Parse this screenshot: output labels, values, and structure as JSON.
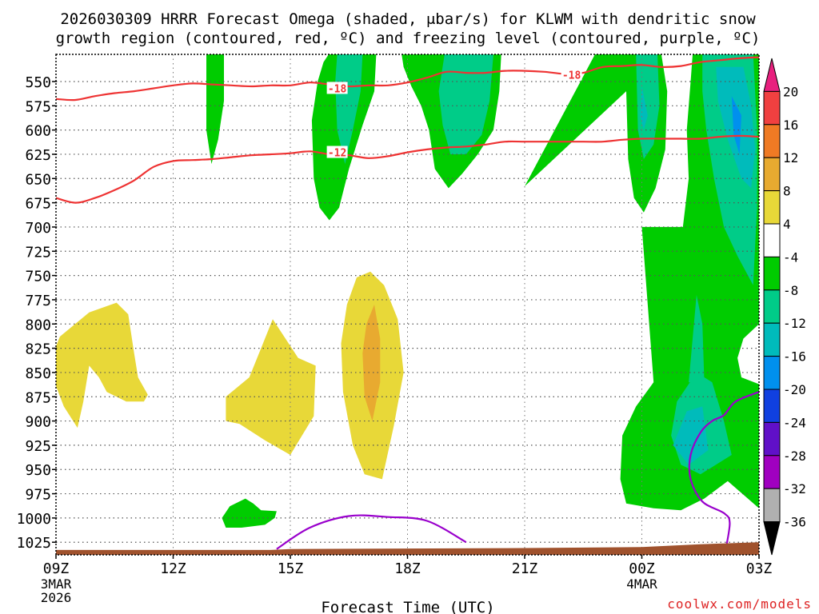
{
  "chart_data": {
    "type": "contour",
    "title_line1": "2026030309 HRRR Forecast Omega (shaded, μbar/s) for KLWM with dendritic snow",
    "title_line2": "growth region (contoured, red, ºC) and freezing level (contoured, purple, ºC)",
    "xlabel": "Forecast Time (UTC)",
    "credit": "coolwx.com/models",
    "x_hours": [
      0,
      3,
      6,
      9,
      12,
      15,
      18
    ],
    "x_labels": [
      "09Z",
      "12Z",
      "15Z",
      "18Z",
      "21Z",
      "00Z",
      "03Z"
    ],
    "x_sublabels": [
      {
        "hour": 0,
        "lines": [
          "3MAR",
          "2026"
        ]
      },
      {
        "hour": 15,
        "lines": [
          "4MAR"
        ]
      }
    ],
    "y_levels": [
      550,
      575,
      600,
      625,
      650,
      675,
      700,
      725,
      750,
      775,
      800,
      825,
      850,
      875,
      900,
      925,
      950,
      975,
      1000,
      1025
    ],
    "y_range_hpa": [
      1038,
      522
    ],
    "x_range_hours": [
      0,
      18
    ],
    "colorbar": {
      "labels": [
        "20",
        "16",
        "12",
        "8",
        "4",
        "-4",
        "-8",
        "-12",
        "-16",
        "-20",
        "-24",
        "-28",
        "-32",
        "-36"
      ],
      "colors": [
        "#e8207e",
        "#f04040",
        "#ef7a24",
        "#e8aa30",
        "#e8d838",
        "#ffffff",
        "#00cc00",
        "#00cc88",
        "#00bbbb",
        "#0090ee",
        "#1040e0",
        "#6010c8",
        "#a000c0",
        "#b0b0b0",
        "#000000"
      ]
    },
    "contour_labels": [
      {
        "text": "-18",
        "hour": 7.2,
        "hpa": 557
      },
      {
        "text": "-18",
        "hour": 13.2,
        "hpa": 543
      },
      {
        "text": "-12",
        "hour": 7.2,
        "hpa": 623
      }
    ],
    "omega_regions": [
      {
        "color": "#00cc00",
        "points": [
          [
            3.85,
            522
          ],
          [
            4.3,
            522
          ],
          [
            4.3,
            570
          ],
          [
            4.15,
            610
          ],
          [
            3.98,
            635
          ],
          [
            3.85,
            600
          ]
        ]
      },
      {
        "color": "#00cc00",
        "points": [
          [
            6.98,
            522
          ],
          [
            8.2,
            522
          ],
          [
            8.15,
            560
          ],
          [
            7.85,
            595
          ],
          [
            7.5,
            640
          ],
          [
            7.25,
            680
          ],
          [
            7.0,
            693
          ],
          [
            6.75,
            680
          ],
          [
            6.6,
            650
          ],
          [
            6.55,
            590
          ],
          [
            6.7,
            550
          ],
          [
            6.85,
            530
          ]
        ]
      },
      {
        "color": "#00cc88",
        "points": [
          [
            7.2,
            522
          ],
          [
            7.85,
            522
          ],
          [
            7.8,
            560
          ],
          [
            7.6,
            600
          ],
          [
            7.4,
            635
          ],
          [
            7.2,
            600
          ],
          [
            7.15,
            550
          ]
        ]
      },
      {
        "color": "#00cc00",
        "points": [
          [
            8.85,
            522
          ],
          [
            11.4,
            522
          ],
          [
            11.35,
            560
          ],
          [
            11.2,
            600
          ],
          [
            10.8,
            625
          ],
          [
            10.4,
            645
          ],
          [
            10.05,
            660
          ],
          [
            9.7,
            640
          ],
          [
            9.55,
            600
          ],
          [
            9.35,
            575
          ],
          [
            9.1,
            555
          ],
          [
            8.9,
            535
          ]
        ]
      },
      {
        "color": "#00cc88",
        "points": [
          [
            9.95,
            522
          ],
          [
            11.2,
            522
          ],
          [
            11.1,
            570
          ],
          [
            10.9,
            605
          ],
          [
            10.5,
            625
          ],
          [
            10.1,
            625
          ],
          [
            9.9,
            595
          ],
          [
            9.8,
            560
          ]
        ]
      },
      {
        "color": "#00cc00",
        "points": [
          [
            12.0,
            658
          ],
          [
            13.8,
            522
          ],
          [
            15.5,
            522
          ],
          [
            15.65,
            560
          ],
          [
            15.6,
            620
          ],
          [
            15.35,
            660
          ],
          [
            15.05,
            685
          ],
          [
            14.8,
            670
          ],
          [
            14.65,
            630
          ],
          [
            14.6,
            560
          ]
        ]
      },
      {
        "color": "#00cc88",
        "points": [
          [
            14.85,
            522
          ],
          [
            15.4,
            522
          ],
          [
            15.45,
            575
          ],
          [
            15.3,
            615
          ],
          [
            15.05,
            630
          ],
          [
            14.9,
            600
          ]
        ]
      },
      {
        "color": "#00bbbb",
        "points": [
          [
            15.0,
            555
          ],
          [
            15.15,
            585
          ],
          [
            15.05,
            600
          ],
          [
            14.95,
            585
          ]
        ]
      },
      {
        "color": "#00cc00",
        "points": [
          [
            16.3,
            522
          ],
          [
            18,
            522
          ],
          [
            18,
            990
          ],
          [
            17.2,
            962
          ],
          [
            16.6,
            980
          ],
          [
            16.0,
            992
          ],
          [
            15.3,
            990
          ],
          [
            14.6,
            985
          ],
          [
            14.45,
            960
          ],
          [
            14.5,
            915
          ],
          [
            14.85,
            885
          ],
          [
            15.3,
            860
          ],
          [
            15.0,
            700
          ],
          [
            16.05,
            700
          ],
          [
            16.2,
            650
          ],
          [
            16.15,
            600
          ],
          [
            16.25,
            550
          ]
        ]
      },
      {
        "color": "#00cc88",
        "points": [
          [
            16.55,
            522
          ],
          [
            17.85,
            522
          ],
          [
            17.95,
            600
          ],
          [
            17.95,
            680
          ],
          [
            17.9,
            720
          ],
          [
            17.85,
            760
          ],
          [
            17.45,
            730
          ],
          [
            17.1,
            700
          ],
          [
            16.85,
            650
          ],
          [
            16.65,
            600
          ],
          [
            16.55,
            560
          ]
        ]
      },
      {
        "color": "#00bbbb",
        "points": [
          [
            16.9,
            535
          ],
          [
            17.6,
            535
          ],
          [
            17.8,
            575
          ],
          [
            17.9,
            620
          ],
          [
            17.8,
            660
          ],
          [
            17.55,
            650
          ],
          [
            17.2,
            610
          ],
          [
            16.95,
            570
          ]
        ]
      },
      {
        "color": "#0090ee",
        "points": [
          [
            17.3,
            565
          ],
          [
            17.55,
            585
          ],
          [
            17.5,
            625
          ],
          [
            17.35,
            605
          ]
        ]
      },
      {
        "color": "#00cc88",
        "points": [
          [
            15.9,
            880
          ],
          [
            16.4,
            850
          ],
          [
            16.8,
            860
          ],
          [
            17.1,
            900
          ],
          [
            17.3,
            935
          ],
          [
            16.5,
            955
          ],
          [
            16.0,
            945
          ],
          [
            15.75,
            915
          ]
        ]
      },
      {
        "color": "#00bbbb",
        "points": [
          [
            15.8,
            925
          ],
          [
            16.15,
            890
          ],
          [
            16.55,
            885
          ],
          [
            16.7,
            930
          ],
          [
            16.2,
            945
          ]
        ]
      },
      {
        "color": "#00cc88",
        "points": [
          [
            16.2,
            860
          ],
          [
            16.4,
            770
          ],
          [
            16.55,
            800
          ],
          [
            16.6,
            860
          ]
        ]
      },
      {
        "color": "#ffffff",
        "points": [
          [
            18.0,
            800
          ],
          [
            17.6,
            815
          ],
          [
            17.45,
            835
          ],
          [
            17.55,
            855
          ],
          [
            18.0,
            862
          ]
        ]
      },
      {
        "color": "#e8d838",
        "points": [
          [
            -0.2,
            843
          ],
          [
            0.1,
            813
          ],
          [
            0.85,
            788
          ],
          [
            1.55,
            778
          ],
          [
            1.85,
            790
          ],
          [
            2.0,
            830
          ],
          [
            2.1,
            855
          ],
          [
            2.35,
            873
          ],
          [
            2.25,
            880
          ],
          [
            1.8,
            880
          ],
          [
            1.3,
            870
          ],
          [
            1.1,
            855
          ],
          [
            0.85,
            843
          ],
          [
            0.7,
            880
          ],
          [
            0.55,
            907
          ],
          [
            0.2,
            885
          ]
        ]
      },
      {
        "color": "#e8d838",
        "points": [
          [
            4.35,
            875
          ],
          [
            4.95,
            855
          ],
          [
            5.25,
            825
          ],
          [
            5.55,
            795
          ],
          [
            6.2,
            835
          ],
          [
            6.65,
            843
          ],
          [
            6.6,
            895
          ],
          [
            6.0,
            935
          ],
          [
            5.35,
            920
          ],
          [
            4.7,
            903
          ],
          [
            4.35,
            900
          ]
        ]
      },
      {
        "color": "#e8d838",
        "points": [
          [
            7.45,
            780
          ],
          [
            7.7,
            752
          ],
          [
            8.05,
            746
          ],
          [
            8.4,
            760
          ],
          [
            8.75,
            795
          ],
          [
            8.9,
            850
          ],
          [
            8.65,
            905
          ],
          [
            8.35,
            960
          ],
          [
            7.9,
            955
          ],
          [
            7.6,
            925
          ],
          [
            7.35,
            870
          ],
          [
            7.3,
            820
          ]
        ]
      },
      {
        "color": "#e8aa30",
        "points": [
          [
            7.85,
            830
          ],
          [
            7.95,
            800
          ],
          [
            8.15,
            780
          ],
          [
            8.3,
            815
          ],
          [
            8.3,
            860
          ],
          [
            8.1,
            900
          ],
          [
            7.9,
            875
          ]
        ]
      },
      {
        "color": "#00cc00",
        "points": [
          [
            4.25,
            1000
          ],
          [
            4.45,
            988
          ],
          [
            4.85,
            980
          ],
          [
            5.05,
            985
          ],
          [
            5.25,
            992
          ],
          [
            5.65,
            993
          ],
          [
            5.6,
            1000
          ],
          [
            5.35,
            1007
          ],
          [
            4.75,
            1010
          ],
          [
            4.35,
            1010
          ]
        ]
      }
    ],
    "dendritic_isotherms": [
      {
        "label": "-18",
        "points": [
          [
            0,
            568
          ],
          [
            0.5,
            569
          ],
          [
            1.0,
            565
          ],
          [
            1.5,
            562
          ],
          [
            2.0,
            560
          ],
          [
            2.5,
            557
          ],
          [
            3.0,
            554
          ],
          [
            3.5,
            552
          ],
          [
            4.0,
            553
          ],
          [
            4.5,
            554
          ],
          [
            5.0,
            555
          ],
          [
            5.5,
            554
          ],
          [
            6.0,
            554
          ],
          [
            6.5,
            551
          ],
          [
            7.0,
            553
          ],
          [
            7.5,
            555
          ],
          [
            8.0,
            554
          ],
          [
            8.5,
            554
          ],
          [
            9.0,
            551
          ],
          [
            9.5,
            546
          ],
          [
            10.0,
            540
          ],
          [
            10.5,
            541
          ],
          [
            11.0,
            541
          ],
          [
            11.5,
            539
          ],
          [
            12.0,
            539
          ],
          [
            12.5,
            540
          ],
          [
            13.0,
            542
          ],
          [
            13.5,
            541
          ],
          [
            14.0,
            535
          ],
          [
            14.5,
            534
          ],
          [
            15.0,
            533
          ],
          [
            15.5,
            535
          ],
          [
            16.0,
            534
          ],
          [
            16.5,
            530
          ],
          [
            17.0,
            528
          ],
          [
            17.5,
            526
          ],
          [
            18.0,
            525
          ]
        ]
      },
      {
        "label": "-12",
        "points": [
          [
            0,
            670
          ],
          [
            0.5,
            675
          ],
          [
            1.0,
            670
          ],
          [
            1.5,
            662
          ],
          [
            2.0,
            652
          ],
          [
            2.5,
            638
          ],
          [
            3.0,
            632
          ],
          [
            3.5,
            631
          ],
          [
            4.0,
            630
          ],
          [
            4.5,
            628
          ],
          [
            5.0,
            626
          ],
          [
            5.5,
            625
          ],
          [
            6.0,
            624
          ],
          [
            6.5,
            622
          ],
          [
            7.0,
            625
          ],
          [
            7.5,
            626
          ],
          [
            8.0,
            629
          ],
          [
            8.5,
            627
          ],
          [
            9.0,
            623
          ],
          [
            9.5,
            620
          ],
          [
            10.0,
            618
          ],
          [
            10.5,
            617
          ],
          [
            11.0,
            615
          ],
          [
            11.5,
            612
          ],
          [
            12.0,
            612
          ],
          [
            12.5,
            612
          ],
          [
            13.0,
            612
          ],
          [
            13.5,
            612
          ],
          [
            14.0,
            612
          ],
          [
            14.5,
            610
          ],
          [
            15.0,
            609
          ],
          [
            15.5,
            609
          ],
          [
            16.0,
            609
          ],
          [
            16.5,
            609
          ],
          [
            17.0,
            607
          ],
          [
            17.5,
            606
          ],
          [
            18.0,
            607
          ]
        ]
      }
    ],
    "freezing_level": [
      {
        "label": "0",
        "points": [
          [
            5.65,
            1032
          ],
          [
            6.5,
            1010
          ],
          [
            7.5,
            998
          ],
          [
            8.5,
            999
          ],
          [
            9.5,
            1003
          ],
          [
            10.5,
            1025
          ]
        ]
      },
      {
        "label": "0",
        "points": [
          [
            18.0,
            870
          ],
          [
            17.4,
            880
          ],
          [
            17.1,
            894
          ],
          [
            16.8,
            900
          ],
          [
            16.5,
            912
          ],
          [
            16.25,
            935
          ],
          [
            16.25,
            960
          ],
          [
            16.55,
            983
          ],
          [
            17.1,
            995
          ],
          [
            17.25,
            1005
          ],
          [
            17.15,
            1032
          ]
        ]
      }
    ],
    "terrain_color": "#a0522d"
  }
}
